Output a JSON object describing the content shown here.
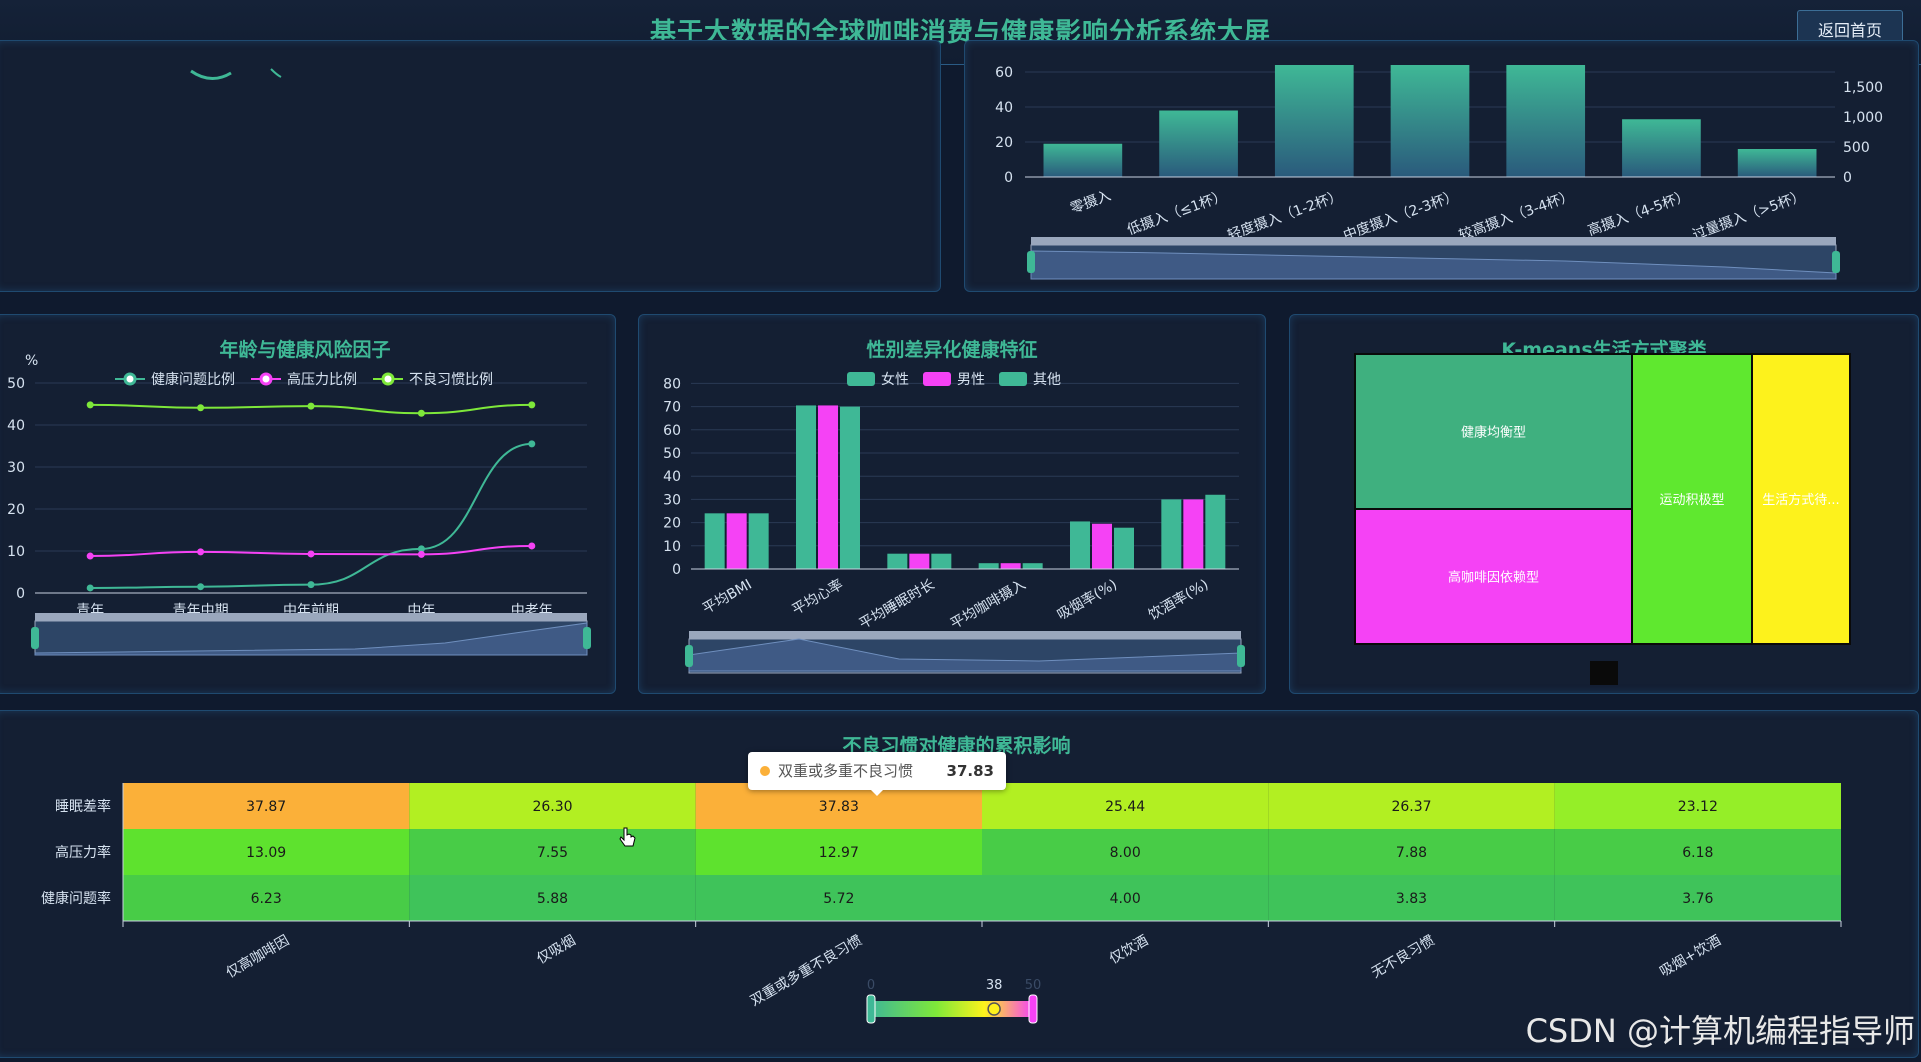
{
  "header": {
    "title": "基于大数据的全球咖啡消费与健康影响分析系统大屏",
    "home_button": "返回首页"
  },
  "intake_chart": {
    "chart_data": {
      "type": "bar",
      "categories": [
        "零摄入",
        "低摄入（≤1杯）",
        "轻度摄入（1-2杯）",
        "中度摄入（2-3杯）",
        "较高摄入（3-4杯）",
        "高摄入（4-5杯）",
        "过量摄入（>5杯）"
      ],
      "values": [
        19,
        38,
        72,
        72,
        72,
        33,
        16
      ],
      "y_ticks": [
        "0",
        "20",
        "40",
        "60"
      ],
      "y2_ticks": [
        "0",
        "500",
        "1,000",
        "1,500"
      ],
      "ylim": [
        0,
        60
      ]
    }
  },
  "age_chart": {
    "title": "年龄与健康风险因子",
    "unit_label": "%",
    "chart_data": {
      "type": "line",
      "categories": [
        "青年",
        "青年中期",
        "中年前期",
        "中年",
        "中老年"
      ],
      "y_ticks": [
        "0",
        "10",
        "20",
        "30",
        "40",
        "50"
      ],
      "ylim": [
        0,
        50
      ],
      "series": [
        {
          "name": "健康问题比例",
          "color": "#3fb896",
          "values": [
            1.2,
            1.5,
            2.0,
            10.5,
            35.5
          ]
        },
        {
          "name": "高压力比例",
          "color": "#f542f5",
          "values": [
            8.8,
            9.8,
            9.3,
            9.2,
            11.2
          ]
        },
        {
          "name": "不良习惯比例",
          "color": "#7ee83a",
          "values": [
            44.8,
            44.1,
            44.5,
            42.8,
            44.8
          ]
        }
      ]
    }
  },
  "gender_chart": {
    "title": "性别差异化健康特征",
    "chart_data": {
      "type": "bar",
      "categories": [
        "平均BMI",
        "平均心率",
        "平均睡眠时长",
        "平均咖啡摄入",
        "吸烟率(%)",
        "饮酒率(%)"
      ],
      "y_ticks": [
        "0",
        "10",
        "20",
        "30",
        "40",
        "50",
        "60",
        "70",
        "80"
      ],
      "ylim": [
        0,
        80
      ],
      "series": [
        {
          "name": "女性",
          "color": "#3fb896",
          "values": [
            24,
            70.5,
            6.6,
            2.5,
            20.5,
            30
          ]
        },
        {
          "name": "男性",
          "color": "#f542f5",
          "values": [
            24,
            70.5,
            6.6,
            2.5,
            19.5,
            30
          ]
        },
        {
          "name": "其他",
          "color": "#3fb896",
          "values": [
            24,
            70,
            6.6,
            2.5,
            17.8,
            32
          ]
        }
      ]
    }
  },
  "cluster_chart": {
    "title": "K-means生活方式聚类",
    "cells": [
      {
        "label": "健康均衡型",
        "color": "#3fb07f"
      },
      {
        "label": "高咖啡因依赖型",
        "color": "#f542f5"
      },
      {
        "label": "运动积极型",
        "color": "#5fe82f"
      },
      {
        "label": "生活方式待...",
        "color": "#fdf21c"
      }
    ]
  },
  "heatmap_chart": {
    "title": "不良习惯对健康的累积影响",
    "chart_data": {
      "type": "heatmap",
      "x_categories": [
        "仅高咖啡因",
        "仅吸烟",
        "双重或多重不良习惯",
        "仅饮酒",
        "无不良习惯",
        "吸烟+饮酒"
      ],
      "y_categories": [
        "睡眠差率",
        "高压力率",
        "健康问题率"
      ],
      "values": [
        [
          "37.87",
          "26.30",
          "37.83",
          "25.44",
          "26.37",
          "23.12"
        ],
        [
          "13.09",
          "7.55",
          "12.97",
          "8.00",
          "7.88",
          "6.18"
        ],
        [
          "6.23",
          "5.88",
          "5.72",
          "4.00",
          "3.83",
          "3.76"
        ]
      ],
      "visual_map": {
        "min": "0",
        "max": "50",
        "current": "38"
      }
    },
    "tooltip": {
      "label": "双重或多重不良习惯",
      "value": "37.83"
    }
  },
  "watermark": "CSDN @计算机编程指导师"
}
